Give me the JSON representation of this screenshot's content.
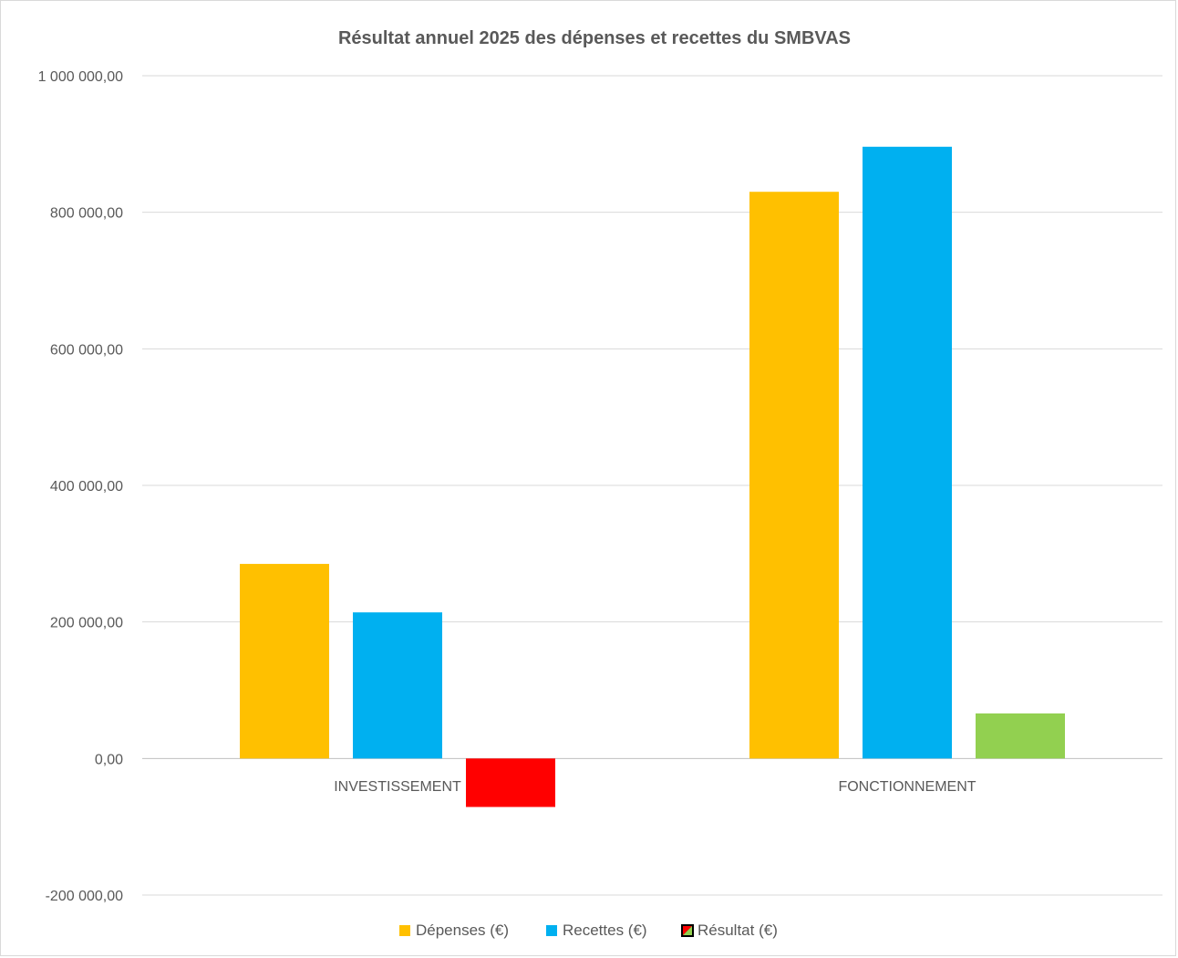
{
  "chart_data": {
    "type": "bar",
    "title": "Résultat annuel 2025 des dépenses et recettes  du SMBVAS",
    "xlabel": "",
    "ylabel": "",
    "ylim": [
      -200000,
      1000000
    ],
    "yticks": [
      -200000,
      0,
      200000,
      400000,
      600000,
      800000,
      1000000
    ],
    "ytick_labels": [
      "-200 000,00",
      "0,00",
      "200 000,00",
      "400 000,00",
      "600 000,00",
      "800 000,00",
      "1 000 000,00"
    ],
    "categories": [
      "INVESTISSEMENT",
      "FONCTIONNEMENT"
    ],
    "series": [
      {
        "name": "Dépenses (€)",
        "values": [
          285000,
          830000
        ],
        "color": "#FFC000"
      },
      {
        "name": "Recettes (€)",
        "values": [
          214000,
          896000
        ],
        "color": "#00B0F0"
      },
      {
        "name": "Résultat (€)",
        "values": [
          -71000,
          66000
        ],
        "colors": [
          "#FF0000",
          "#92D050"
        ]
      }
    ],
    "grid": true,
    "legend": "bottom"
  }
}
